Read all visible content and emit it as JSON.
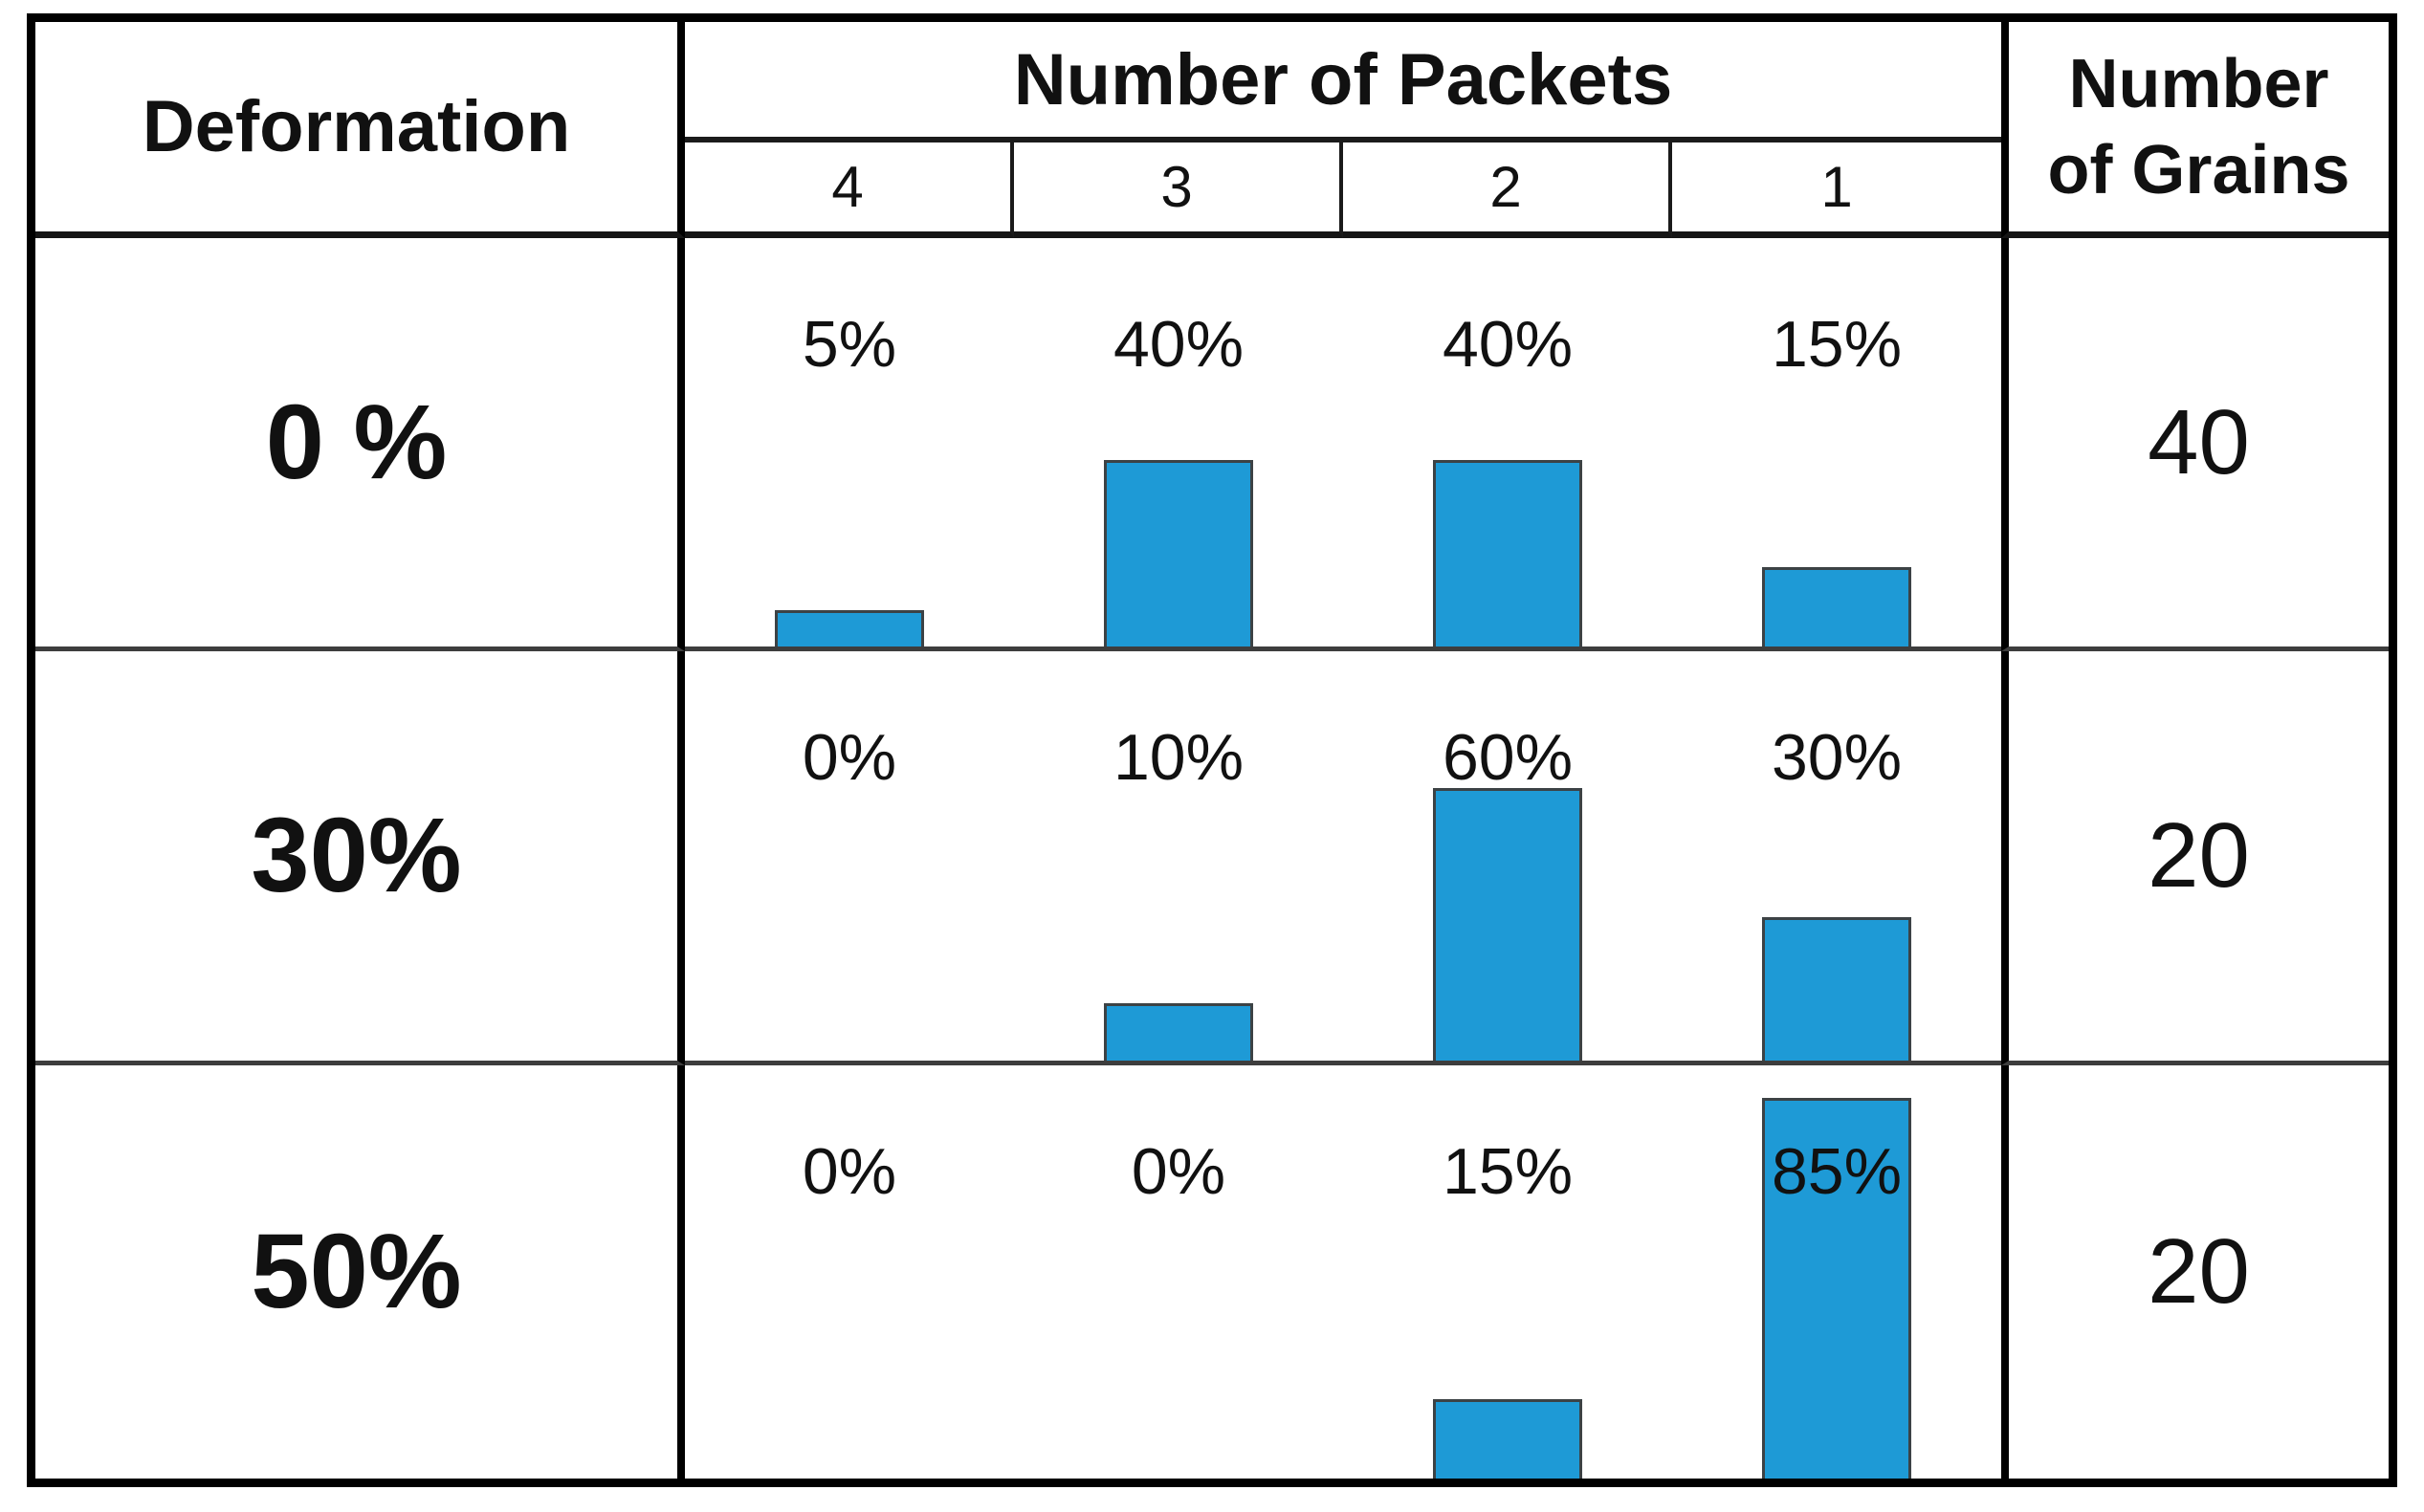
{
  "colors": {
    "bar_fill": "#1e9ad6",
    "bar_outline": "#3c4245",
    "border": "#000000"
  },
  "header": {
    "deformation": "Deformation",
    "packets": "Number of Packets",
    "grains": "Number of Grains",
    "packet_counts": [
      "4",
      "3",
      "2",
      "1"
    ]
  },
  "rows": [
    {
      "deformation": "0 %",
      "grains": "40",
      "cells": [
        {
          "label": "5%",
          "value": 5
        },
        {
          "label": "40%",
          "value": 40
        },
        {
          "label": "40%",
          "value": 40
        },
        {
          "label": "15%",
          "value": 15
        }
      ]
    },
    {
      "deformation": "30%",
      "grains": "20",
      "cells": [
        {
          "label": "0%",
          "value": 0
        },
        {
          "label": "10%",
          "value": 10
        },
        {
          "label": "60%",
          "value": 60
        },
        {
          "label": "30%",
          "value": 30
        }
      ]
    },
    {
      "deformation": "50%",
      "grains": "20",
      "cells": [
        {
          "label": "0%",
          "value": 0
        },
        {
          "label": "0%",
          "value": 0
        },
        {
          "label": "15%",
          "value": 15
        },
        {
          "label": "85%",
          "value": 85
        }
      ]
    }
  ],
  "chart_data": [
    {
      "type": "bar",
      "title": "Deformation 0 %",
      "categories": [
        "4",
        "3",
        "2",
        "1"
      ],
      "values": [
        5,
        40,
        40,
        15
      ],
      "unit": "%",
      "annotations": [
        "5%",
        "40%",
        "40%",
        "15%"
      ],
      "number_of_grains": 40,
      "ylim": [
        0,
        100
      ],
      "grid": false,
      "legend": false
    },
    {
      "type": "bar",
      "title": "Deformation 30%",
      "categories": [
        "4",
        "3",
        "2",
        "1"
      ],
      "values": [
        0,
        10,
        60,
        30
      ],
      "unit": "%",
      "annotations": [
        "0%",
        "10%",
        "60%",
        "30%"
      ],
      "number_of_grains": 20,
      "ylim": [
        0,
        100
      ],
      "grid": false,
      "legend": false
    },
    {
      "type": "bar",
      "title": "Deformation 50%",
      "categories": [
        "4",
        "3",
        "2",
        "1"
      ],
      "values": [
        0,
        0,
        15,
        85
      ],
      "unit": "%",
      "annotations": [
        "0%",
        "0%",
        "15%",
        "85%"
      ],
      "number_of_grains": 20,
      "ylim": [
        0,
        100
      ],
      "grid": false,
      "legend": false
    }
  ]
}
